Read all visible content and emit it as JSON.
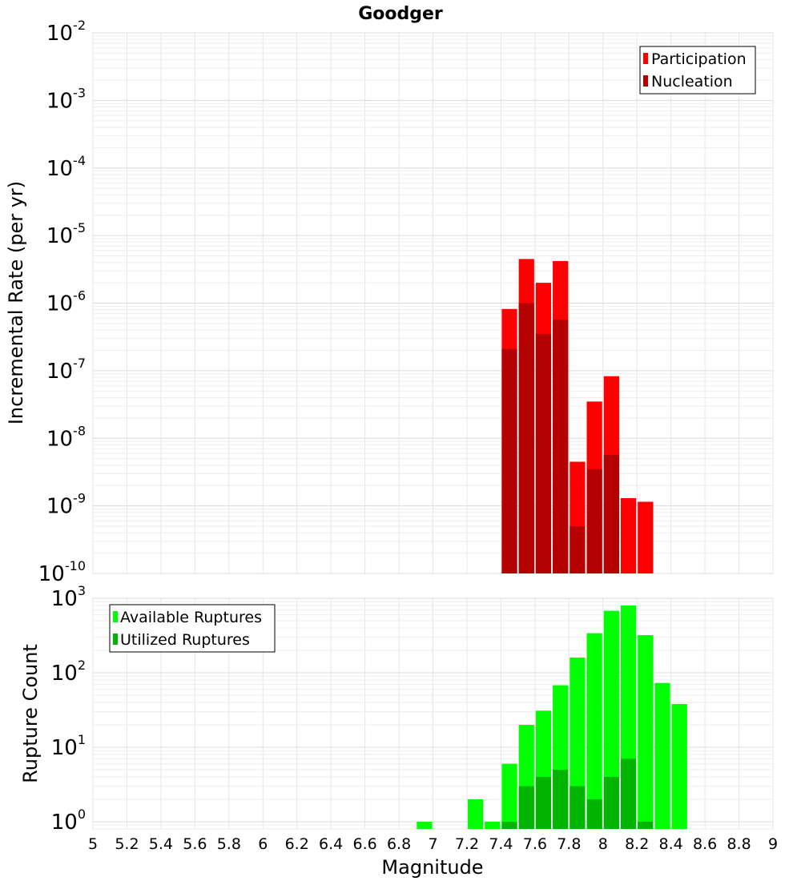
{
  "chart_data": [
    {
      "type": "bar",
      "panel": "top",
      "title": "Goodger",
      "xlabel": "",
      "ylabel": "Incremental Rate (per yr)",
      "ylog": true,
      "ylim": [
        1e-10,
        0.01
      ],
      "xlim": [
        5,
        9
      ],
      "grid": true,
      "legend_position": "top-right",
      "ytick_exponents": [
        "-2",
        "-3",
        "-4",
        "-5",
        "-6",
        "-7",
        "-8",
        "-9",
        "-10"
      ],
      "x": [
        7.45,
        7.55,
        7.65,
        7.75,
        7.85,
        7.95,
        8.05,
        8.15,
        8.25
      ],
      "series": [
        {
          "name": "Participation",
          "color": "#ff0000",
          "values": [
            8.2e-07,
            4.5e-06,
            2e-06,
            4.2e-06,
            4.5e-09,
            3.5e-08,
            8.3e-08,
            1.3e-09,
            1.15e-09
          ]
        },
        {
          "name": "Nucleation",
          "color": "#b40000",
          "values": [
            2.1e-07,
            1e-06,
            3.5e-07,
            5.7e-07,
            5e-10,
            3.5e-09,
            5.7e-09,
            null,
            null
          ]
        }
      ]
    },
    {
      "type": "bar",
      "panel": "bottom",
      "xlabel": "Magnitude",
      "ylabel": "Rupture Count",
      "ylog": true,
      "ylim": [
        0.8,
        1000
      ],
      "xlim": [
        5,
        9
      ],
      "grid": true,
      "legend_position": "top-left",
      "ytick_exponents": [
        "3",
        "2",
        "1",
        "0"
      ],
      "xtick_labels": [
        "5",
        "5.2",
        "5.4",
        "5.6",
        "5.8",
        "6",
        "6.2",
        "6.4",
        "6.6",
        "6.8",
        "7",
        "7.2",
        "7.4",
        "7.6",
        "7.8",
        "8",
        "8.2",
        "8.4",
        "8.6",
        "8.8",
        "9"
      ],
      "x": [
        6.95,
        7.25,
        7.35,
        7.45,
        7.55,
        7.65,
        7.75,
        7.85,
        7.95,
        8.05,
        8.15,
        8.25,
        8.35,
        8.45
      ],
      "series": [
        {
          "name": "Available Ruptures",
          "color": "#00ff00",
          "values": [
            1,
            2,
            1,
            6,
            20,
            31,
            68,
            160,
            340,
            680,
            800,
            320,
            73,
            38
          ]
        },
        {
          "name": "Utilized Ruptures",
          "color": "#00b400",
          "values": [
            null,
            null,
            null,
            1,
            3,
            4,
            5,
            3,
            2,
            4,
            7,
            1,
            null,
            null
          ]
        }
      ]
    }
  ]
}
